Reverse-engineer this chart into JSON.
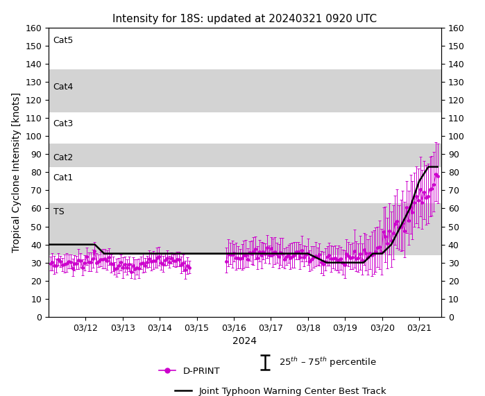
{
  "title": "Intensity for 18S: updated at 20240321 0920 UTC",
  "xlabel": "2024",
  "ylabel": "Tropical Cyclone Intensity [knots]",
  "ylim": [
    0,
    160
  ],
  "yticks": [
    0,
    10,
    20,
    30,
    40,
    50,
    60,
    70,
    80,
    90,
    100,
    110,
    120,
    130,
    140,
    150,
    160
  ],
  "background_color": "#ffffff",
  "shaded_bands": [
    {
      "ymin": 34,
      "ymax": 63,
      "color": "#d3d3d3",
      "label": "TS"
    },
    {
      "ymin": 83,
      "ymax": 96,
      "color": "#d3d3d3",
      "label": "Cat2"
    },
    {
      "ymin": 113,
      "ymax": 137,
      "color": "#d3d3d3",
      "label": "Cat4"
    }
  ],
  "category_labels": [
    {
      "text": "Cat5",
      "y": 153
    },
    {
      "text": "Cat4",
      "y": 127
    },
    {
      "text": "Cat3",
      "y": 107
    },
    {
      "text": "Cat2",
      "y": 88
    },
    {
      "text": "Cat1",
      "y": 77
    },
    {
      "text": "TS",
      "y": 58
    }
  ],
  "best_track_x": [
    0.0,
    0.5,
    1.0,
    1.25,
    1.5,
    2.0,
    2.5,
    3.0,
    3.5,
    4.0,
    4.5,
    5.0,
    5.5,
    6.0,
    6.5,
    7.0,
    7.5,
    8.0,
    8.25,
    8.5,
    8.75,
    9.0,
    9.25,
    9.5,
    9.75,
    10.0,
    10.25,
    10.5
  ],
  "best_track_y": [
    40,
    40,
    40,
    40,
    35,
    35,
    35,
    35,
    35,
    35,
    35,
    35,
    35,
    35,
    35,
    35,
    30,
    30,
    30,
    30,
    35,
    35,
    40,
    50,
    60,
    75,
    83,
    83
  ],
  "dprint_color": "#cc00cc",
  "besttrack_color": "#000000",
  "figsize": [
    6.99,
    5.71
  ],
  "dpi": 100,
  "day_labels": [
    "03/12",
    "03/13",
    "03/14",
    "03/15",
    "03/16",
    "03/17",
    "03/18",
    "03/19",
    "03/20",
    "03/21"
  ],
  "day_positions": [
    1,
    2,
    3,
    4,
    5,
    6,
    7,
    8,
    9,
    10
  ],
  "xmin": 0.0,
  "xmax": 10.6
}
